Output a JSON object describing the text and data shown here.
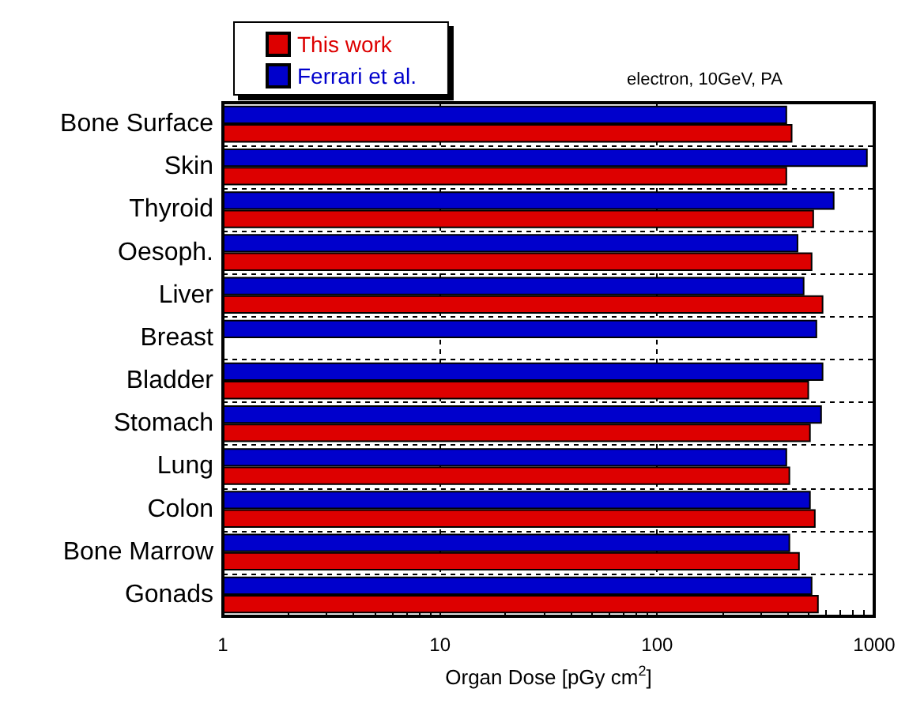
{
  "chart_data": {
    "type": "bar",
    "orientation": "horizontal",
    "log": "x",
    "categories": [
      "Bone Surface",
      "Skin",
      "Thyroid",
      "Oesoph.",
      "Liver",
      "Breast",
      "Bladder",
      "Stomach",
      "Lung",
      "Colon",
      "Bone Marrow",
      "Gonads"
    ],
    "series": [
      {
        "name": "This work",
        "color": "#dd0000",
        "values": [
          420,
          397,
          528,
          519,
          583,
          null,
          501,
          510,
          410,
          537,
          454,
          555
        ]
      },
      {
        "name": "Ferrari et al.",
        "color": "#0000cc",
        "values": [
          397,
          933,
          656,
          447,
          477,
          546,
          583,
          574,
          397,
          510,
          410,
          519
        ]
      }
    ],
    "xlim": [
      1,
      1000
    ],
    "xticks": [
      1,
      10,
      100,
      1000
    ],
    "xlabel": "Organ Dose [pGy cm$^{2}$]",
    "annotations": [
      "electron, 10GeV, PA"
    ],
    "grid": true,
    "legend": "top left"
  }
}
